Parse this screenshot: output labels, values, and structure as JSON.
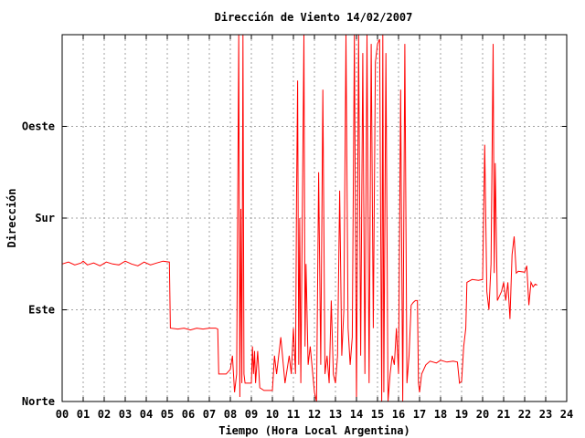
{
  "chart_data": {
    "type": "line",
    "title": "Dirección de Viento 14/02/2007",
    "xlabel": "Tiempo (Hora Local Argentina)",
    "ylabel": "Dirección",
    "xlim": [
      0,
      24
    ],
    "ylim": [
      0,
      4
    ],
    "x_ticks": [
      "00",
      "01",
      "02",
      "03",
      "04",
      "05",
      "06",
      "07",
      "08",
      "09",
      "10",
      "11",
      "12",
      "13",
      "14",
      "15",
      "16",
      "17",
      "18",
      "19",
      "20",
      "21",
      "22",
      "23",
      "24"
    ],
    "y_ticks": [
      {
        "value": 0,
        "label": "Norte"
      },
      {
        "value": 1,
        "label": "Este"
      },
      {
        "value": 2,
        "label": "Sur"
      },
      {
        "value": 3,
        "label": "Oeste"
      }
    ],
    "grid": true,
    "series": [
      {
        "color": "#ff0000",
        "points": [
          [
            0.0,
            1.5
          ],
          [
            0.3,
            1.52
          ],
          [
            0.6,
            1.49
          ],
          [
            0.9,
            1.51
          ],
          [
            1.0,
            1.53
          ],
          [
            1.2,
            1.49
          ],
          [
            1.5,
            1.51
          ],
          [
            1.8,
            1.48
          ],
          [
            2.1,
            1.52
          ],
          [
            2.4,
            1.5
          ],
          [
            2.7,
            1.49
          ],
          [
            3.0,
            1.53
          ],
          [
            3.3,
            1.5
          ],
          [
            3.6,
            1.48
          ],
          [
            3.9,
            1.52
          ],
          [
            4.2,
            1.49
          ],
          [
            4.5,
            1.51
          ],
          [
            4.8,
            1.53
          ],
          [
            5.1,
            1.52
          ],
          [
            5.15,
            0.8
          ],
          [
            5.5,
            0.79
          ],
          [
            5.8,
            0.8
          ],
          [
            6.1,
            0.78
          ],
          [
            6.4,
            0.8
          ],
          [
            6.7,
            0.79
          ],
          [
            7.0,
            0.8
          ],
          [
            7.3,
            0.8
          ],
          [
            7.4,
            0.79
          ],
          [
            7.45,
            0.3
          ],
          [
            7.8,
            0.3
          ],
          [
            8.0,
            0.35
          ],
          [
            8.1,
            0.5
          ],
          [
            8.2,
            0.1
          ],
          [
            8.3,
            0.3
          ],
          [
            8.4,
            4.0
          ],
          [
            8.45,
            0.05
          ],
          [
            8.5,
            2.1
          ],
          [
            8.55,
            0.2
          ],
          [
            8.6,
            4.0
          ],
          [
            8.65,
            0.3
          ],
          [
            8.7,
            0.2
          ],
          [
            9.0,
            0.2
          ],
          [
            9.05,
            0.6
          ],
          [
            9.1,
            0.3
          ],
          [
            9.15,
            0.55
          ],
          [
            9.2,
            0.2
          ],
          [
            9.3,
            0.55
          ],
          [
            9.4,
            0.15
          ],
          [
            9.6,
            0.12
          ],
          [
            10.0,
            0.12
          ],
          [
            10.1,
            0.5
          ],
          [
            10.2,
            0.3
          ],
          [
            10.4,
            0.7
          ],
          [
            10.6,
            0.2
          ],
          [
            10.8,
            0.5
          ],
          [
            10.9,
            0.3
          ],
          [
            11.0,
            0.8
          ],
          [
            11.1,
            0.3
          ],
          [
            11.15,
            2.2
          ],
          [
            11.2,
            3.5
          ],
          [
            11.25,
            0.4
          ],
          [
            11.3,
            2.0
          ],
          [
            11.35,
            0.2
          ],
          [
            11.5,
            4.0
          ],
          [
            11.55,
            0.6
          ],
          [
            11.6,
            1.5
          ],
          [
            11.7,
            0.4
          ],
          [
            11.8,
            0.6
          ],
          [
            12.0,
            0.1
          ],
          [
            12.1,
            0.0
          ],
          [
            12.2,
            2.5
          ],
          [
            12.3,
            0.4
          ],
          [
            12.4,
            3.4
          ],
          [
            12.5,
            0.3
          ],
          [
            12.6,
            0.5
          ],
          [
            12.7,
            0.2
          ],
          [
            12.8,
            1.1
          ],
          [
            12.9,
            0.3
          ],
          [
            13.0,
            0.2
          ],
          [
            13.1,
            0.5
          ],
          [
            13.2,
            2.3
          ],
          [
            13.3,
            0.5
          ],
          [
            13.4,
            1.0
          ],
          [
            13.5,
            4.0
          ],
          [
            13.6,
            0.8
          ],
          [
            13.7,
            0.4
          ],
          [
            13.8,
            0.7
          ],
          [
            13.9,
            4.0
          ],
          [
            14.0,
            0.0
          ],
          [
            14.1,
            4.0
          ],
          [
            14.2,
            0.5
          ],
          [
            14.3,
            3.8
          ],
          [
            14.4,
            0.3
          ],
          [
            14.5,
            4.0
          ],
          [
            14.6,
            0.2
          ],
          [
            14.7,
            3.9
          ],
          [
            14.8,
            0.8
          ],
          [
            14.9,
            3.7
          ],
          [
            15.0,
            3.9
          ],
          [
            15.1,
            3.95
          ],
          [
            15.2,
            0.0
          ],
          [
            15.25,
            4.0
          ],
          [
            15.3,
            0.1
          ],
          [
            15.4,
            3.8
          ],
          [
            15.5,
            0.0
          ],
          [
            15.6,
            0.3
          ],
          [
            15.7,
            0.5
          ],
          [
            15.8,
            0.4
          ],
          [
            15.9,
            0.8
          ],
          [
            16.0,
            0.3
          ],
          [
            16.1,
            3.4
          ],
          [
            16.2,
            0.0
          ],
          [
            16.3,
            3.9
          ],
          [
            16.4,
            0.2
          ],
          [
            16.5,
            0.5
          ],
          [
            16.6,
            1.05
          ],
          [
            16.7,
            1.08
          ],
          [
            16.8,
            1.1
          ],
          [
            16.9,
            1.1
          ],
          [
            16.95,
            0.2
          ],
          [
            17.0,
            0.1
          ],
          [
            17.1,
            0.3
          ],
          [
            17.3,
            0.4
          ],
          [
            17.5,
            0.44
          ],
          [
            17.8,
            0.42
          ],
          [
            18.0,
            0.45
          ],
          [
            18.3,
            0.43
          ],
          [
            18.6,
            0.44
          ],
          [
            18.8,
            0.43
          ],
          [
            18.9,
            0.2
          ],
          [
            19.0,
            0.22
          ],
          [
            19.1,
            0.6
          ],
          [
            19.2,
            0.8
          ],
          [
            19.25,
            1.3
          ],
          [
            19.5,
            1.33
          ],
          [
            19.8,
            1.32
          ],
          [
            20.0,
            1.33
          ],
          [
            20.1,
            2.8
          ],
          [
            20.2,
            1.2
          ],
          [
            20.3,
            1.0
          ],
          [
            20.4,
            1.5
          ],
          [
            20.5,
            3.9
          ],
          [
            20.55,
            1.4
          ],
          [
            20.6,
            2.6
          ],
          [
            20.7,
            1.1
          ],
          [
            20.9,
            1.2
          ],
          [
            21.0,
            1.3
          ],
          [
            21.1,
            1.1
          ],
          [
            21.2,
            1.3
          ],
          [
            21.3,
            0.9
          ],
          [
            21.4,
            1.6
          ],
          [
            21.5,
            1.8
          ],
          [
            21.6,
            1.4
          ],
          [
            21.7,
            1.42
          ],
          [
            22.0,
            1.41
          ],
          [
            22.1,
            1.48
          ],
          [
            22.2,
            1.05
          ],
          [
            22.3,
            1.3
          ],
          [
            22.4,
            1.25
          ],
          [
            22.5,
            1.28
          ],
          [
            22.6,
            1.27
          ]
        ]
      }
    ]
  }
}
